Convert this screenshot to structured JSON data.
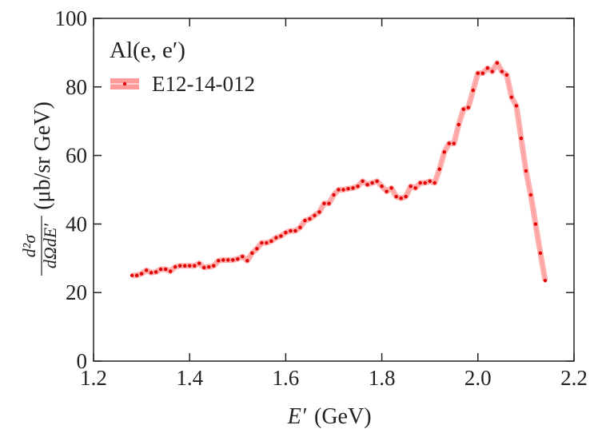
{
  "chart_data": {
    "type": "line",
    "xlabel": {
      "symbol": "E′",
      "units": "(GeV)"
    },
    "ylabel": {
      "numerator": "d²σ",
      "denominator": "dΩdE′",
      "units": "(μb/sr GeV)"
    },
    "legend_title": "Al(e, e′)",
    "legend_position": "upper left",
    "xlim": [
      1.2,
      2.2
    ],
    "xticks": [
      1.2,
      1.4,
      1.6,
      1.8,
      {
        "value": 2,
        "label": "2.0"
      },
      2.2
    ],
    "ylim": [
      0,
      100
    ],
    "yticks": [
      0,
      20,
      40,
      60,
      80,
      100
    ],
    "x": [
      1.28,
      1.29,
      1.3,
      1.31,
      1.32,
      1.33,
      1.34,
      1.35,
      1.36,
      1.37,
      1.38,
      1.39,
      1.4,
      1.41,
      1.42,
      1.43,
      1.44,
      1.45,
      1.46,
      1.47,
      1.48,
      1.49,
      1.5,
      1.51,
      1.52,
      1.53,
      1.54,
      1.55,
      1.56,
      1.57,
      1.58,
      1.59,
      1.6,
      1.61,
      1.62,
      1.63,
      1.64,
      1.65,
      1.66,
      1.67,
      1.68,
      1.69,
      1.7,
      1.71,
      1.72,
      1.73,
      1.74,
      1.75,
      1.76,
      1.77,
      1.78,
      1.79,
      1.8,
      1.81,
      1.82,
      1.83,
      1.84,
      1.85,
      1.86,
      1.87,
      1.88,
      1.89,
      1.9,
      1.91,
      1.92,
      1.93,
      1.94,
      1.95,
      1.96,
      1.97,
      1.98,
      1.99,
      2.0,
      2.01,
      2.02,
      2.03,
      2.04,
      2.05,
      2.06,
      2.07,
      2.08,
      2.09,
      2.1,
      2.11,
      2.12,
      2.13,
      2.14
    ],
    "series": [
      {
        "name": "E12-14-012",
        "color": "#e00000",
        "band_color": "#ff9a9a",
        "values": [
          25,
          25,
          25.5,
          26.5,
          25.8,
          26,
          26.8,
          26.8,
          26.2,
          27.5,
          27.8,
          27.8,
          27.8,
          27.8,
          28.5,
          27.3,
          27.5,
          27.8,
          29.3,
          29.5,
          29.5,
          29.5,
          29.8,
          30.5,
          29.3,
          31.5,
          32.8,
          34.5,
          34.5,
          35,
          36,
          36.5,
          37.5,
          38,
          38,
          39,
          41,
          41.5,
          42.5,
          43.5,
          46,
          46,
          48.5,
          50,
          50,
          50.3,
          50.5,
          51,
          52.5,
          51.5,
          52,
          52.5,
          51,
          49.5,
          50.5,
          48,
          47.5,
          48,
          51,
          50.5,
          52,
          52,
          52.5,
          52,
          56,
          61,
          63.5,
          63.5,
          69,
          73.5,
          74,
          79,
          84,
          84,
          85.5,
          84.5,
          87,
          84.5,
          83.5,
          77,
          74.5,
          65,
          55.5,
          48.5,
          40,
          31.5,
          23.5
        ]
      }
    ]
  }
}
